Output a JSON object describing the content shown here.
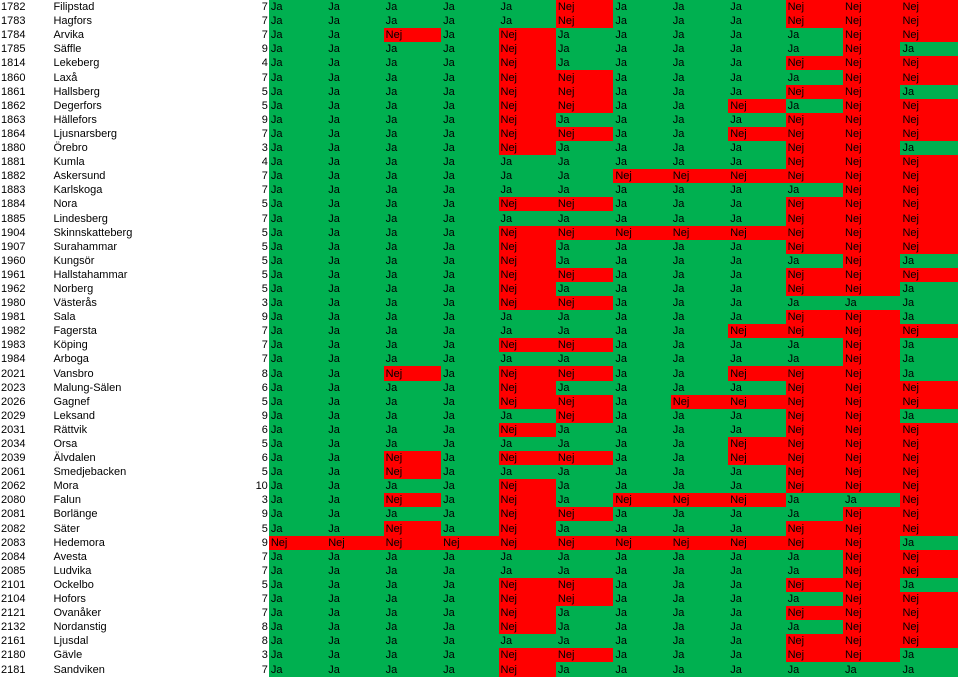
{
  "colors": {
    "ja": "#00b050",
    "nej": "#ff0000"
  },
  "rows": [
    {
      "code": "1782",
      "name": "Filipstad",
      "count": "7",
      "values": [
        "Ja",
        "Ja",
        "Ja",
        "Ja",
        "Ja",
        "Nej",
        "Ja",
        "Ja",
        "Ja",
        "Nej",
        "Nej",
        "Nej"
      ]
    },
    {
      "code": "1783",
      "name": "Hagfors",
      "count": "7",
      "values": [
        "Ja",
        "Ja",
        "Ja",
        "Ja",
        "Ja",
        "Nej",
        "Ja",
        "Ja",
        "Ja",
        "Nej",
        "Nej",
        "Nej"
      ]
    },
    {
      "code": "1784",
      "name": "Arvika",
      "count": "7",
      "values": [
        "Ja",
        "Ja",
        "Nej",
        "Ja",
        "Nej",
        "Ja",
        "Ja",
        "Ja",
        "Ja",
        "Ja",
        "Nej",
        "Nej"
      ]
    },
    {
      "code": "1785",
      "name": "Säffle",
      "count": "9",
      "values": [
        "Ja",
        "Ja",
        "Ja",
        "Ja",
        "Nej",
        "Ja",
        "Ja",
        "Ja",
        "Ja",
        "Ja",
        "Nej",
        "Ja"
      ]
    },
    {
      "code": "1814",
      "name": "Lekeberg",
      "count": "4",
      "values": [
        "Ja",
        "Ja",
        "Ja",
        "Ja",
        "Nej",
        "Ja",
        "Ja",
        "Ja",
        "Ja",
        "Nej",
        "Nej",
        "Nej"
      ]
    },
    {
      "code": "1860",
      "name": "Laxå",
      "count": "7",
      "values": [
        "Ja",
        "Ja",
        "Ja",
        "Ja",
        "Nej",
        "Nej",
        "Ja",
        "Ja",
        "Ja",
        "Ja",
        "Nej",
        "Nej"
      ]
    },
    {
      "code": "1861",
      "name": "Hallsberg",
      "count": "5",
      "values": [
        "Ja",
        "Ja",
        "Ja",
        "Ja",
        "Nej",
        "Nej",
        "Ja",
        "Ja",
        "Ja",
        "Nej",
        "Nej",
        "Ja"
      ]
    },
    {
      "code": "1862",
      "name": "Degerfors",
      "count": "5",
      "values": [
        "Ja",
        "Ja",
        "Ja",
        "Ja",
        "Nej",
        "Nej",
        "Ja",
        "Ja",
        "Nej",
        "Ja",
        "Nej",
        "Nej"
      ]
    },
    {
      "code": "1863",
      "name": "Hällefors",
      "count": "9",
      "values": [
        "Ja",
        "Ja",
        "Ja",
        "Ja",
        "Nej",
        "Ja",
        "Ja",
        "Ja",
        "Ja",
        "Nej",
        "Nej",
        "Nej"
      ]
    },
    {
      "code": "1864",
      "name": "Ljusnarsberg",
      "count": "7",
      "values": [
        "Ja",
        "Ja",
        "Ja",
        "Ja",
        "Nej",
        "Nej",
        "Ja",
        "Ja",
        "Nej",
        "Nej",
        "Nej",
        "Nej"
      ]
    },
    {
      "code": "1880",
      "name": "Örebro",
      "count": "3",
      "values": [
        "Ja",
        "Ja",
        "Ja",
        "Ja",
        "Nej",
        "Ja",
        "Ja",
        "Ja",
        "Ja",
        "Nej",
        "Nej",
        "Ja"
      ]
    },
    {
      "code": "1881",
      "name": "Kumla",
      "count": "4",
      "values": [
        "Ja",
        "Ja",
        "Ja",
        "Ja",
        "Ja",
        "Ja",
        "Ja",
        "Ja",
        "Ja",
        "Nej",
        "Nej",
        "Nej"
      ]
    },
    {
      "code": "1882",
      "name": "Askersund",
      "count": "7",
      "values": [
        "Ja",
        "Ja",
        "Ja",
        "Ja",
        "Ja",
        "Ja",
        "Nej",
        "Nej",
        "Nej",
        "Nej",
        "Nej",
        "Nej"
      ]
    },
    {
      "code": "1883",
      "name": "Karlskoga",
      "count": "7",
      "values": [
        "Ja",
        "Ja",
        "Ja",
        "Ja",
        "Ja",
        "Ja",
        "Ja",
        "Ja",
        "Ja",
        "Ja",
        "Nej",
        "Nej"
      ]
    },
    {
      "code": "1884",
      "name": "Nora",
      "count": "5",
      "values": [
        "Ja",
        "Ja",
        "Ja",
        "Ja",
        "Nej",
        "Nej",
        "Ja",
        "Ja",
        "Ja",
        "Nej",
        "Nej",
        "Nej"
      ]
    },
    {
      "code": "1885",
      "name": "Lindesberg",
      "count": "7",
      "values": [
        "Ja",
        "Ja",
        "Ja",
        "Ja",
        "Ja",
        "Ja",
        "Ja",
        "Ja",
        "Ja",
        "Nej",
        "Nej",
        "Nej"
      ]
    },
    {
      "code": "1904",
      "name": "Skinnskatteberg",
      "count": "5",
      "values": [
        "Ja",
        "Ja",
        "Ja",
        "Ja",
        "Nej",
        "Nej",
        "Nej",
        "Nej",
        "Nej",
        "Nej",
        "Nej",
        "Nej"
      ]
    },
    {
      "code": "1907",
      "name": "Surahammar",
      "count": "5",
      "values": [
        "Ja",
        "Ja",
        "Ja",
        "Ja",
        "Nej",
        "Ja",
        "Ja",
        "Ja",
        "Ja",
        "Nej",
        "Nej",
        "Nej"
      ]
    },
    {
      "code": "1960",
      "name": "Kungsör",
      "count": "5",
      "values": [
        "Ja",
        "Ja",
        "Ja",
        "Ja",
        "Nej",
        "Ja",
        "Ja",
        "Ja",
        "Ja",
        "Ja",
        "Nej",
        "Ja"
      ]
    },
    {
      "code": "1961",
      "name": "Hallstahammar",
      "count": "5",
      "values": [
        "Ja",
        "Ja",
        "Ja",
        "Ja",
        "Nej",
        "Nej",
        "Ja",
        "Ja",
        "Ja",
        "Nej",
        "Nej",
        "Nej"
      ]
    },
    {
      "code": "1962",
      "name": "Norberg",
      "count": "5",
      "values": [
        "Ja",
        "Ja",
        "Ja",
        "Ja",
        "Nej",
        "Ja",
        "Ja",
        "Ja",
        "Ja",
        "Nej",
        "Nej",
        "Ja"
      ]
    },
    {
      "code": "1980",
      "name": "Västerås",
      "count": "3",
      "values": [
        "Ja",
        "Ja",
        "Ja",
        "Ja",
        "Nej",
        "Nej",
        "Ja",
        "Ja",
        "Ja",
        "Ja",
        "Ja",
        "Ja"
      ]
    },
    {
      "code": "1981",
      "name": "Sala",
      "count": "9",
      "values": [
        "Ja",
        "Ja",
        "Ja",
        "Ja",
        "Ja",
        "Ja",
        "Ja",
        "Ja",
        "Ja",
        "Nej",
        "Nej",
        "Ja"
      ]
    },
    {
      "code": "1982",
      "name": "Fagersta",
      "count": "7",
      "values": [
        "Ja",
        "Ja",
        "Ja",
        "Ja",
        "Ja",
        "Ja",
        "Ja",
        "Ja",
        "Nej",
        "Nej",
        "Nej",
        "Nej"
      ]
    },
    {
      "code": "1983",
      "name": "Köping",
      "count": "7",
      "values": [
        "Ja",
        "Ja",
        "Ja",
        "Ja",
        "Nej",
        "Nej",
        "Ja",
        "Ja",
        "Ja",
        "Ja",
        "Nej",
        "Ja"
      ]
    },
    {
      "code": "1984",
      "name": "Arboga",
      "count": "7",
      "values": [
        "Ja",
        "Ja",
        "Ja",
        "Ja",
        "Ja",
        "Ja",
        "Ja",
        "Ja",
        "Ja",
        "Ja",
        "Nej",
        "Ja"
      ]
    },
    {
      "code": "2021",
      "name": "Vansbro",
      "count": "8",
      "values": [
        "Ja",
        "Ja",
        "Nej",
        "Ja",
        "Nej",
        "Nej",
        "Ja",
        "Ja",
        "Nej",
        "Nej",
        "Nej",
        "Ja"
      ]
    },
    {
      "code": "2023",
      "name": "Malung-Sälen",
      "count": "6",
      "values": [
        "Ja",
        "Ja",
        "Ja",
        "Ja",
        "Nej",
        "Ja",
        "Ja",
        "Ja",
        "Ja",
        "Nej",
        "Nej",
        "Nej"
      ]
    },
    {
      "code": "2026",
      "name": "Gagnef",
      "count": "5",
      "values": [
        "Ja",
        "Ja",
        "Ja",
        "Ja",
        "Nej",
        "Nej",
        "Ja",
        "Nej",
        "Nej",
        "Nej",
        "Nej",
        "Nej"
      ]
    },
    {
      "code": "2029",
      "name": "Leksand",
      "count": "9",
      "values": [
        "Ja",
        "Ja",
        "Ja",
        "Ja",
        "Ja",
        "Nej",
        "Ja",
        "Ja",
        "Ja",
        "Nej",
        "Nej",
        "Ja"
      ]
    },
    {
      "code": "2031",
      "name": "Rättvik",
      "count": "6",
      "values": [
        "Ja",
        "Ja",
        "Ja",
        "Ja",
        "Nej",
        "Ja",
        "Ja",
        "Ja",
        "Ja",
        "Nej",
        "Nej",
        "Nej"
      ]
    },
    {
      "code": "2034",
      "name": "Orsa",
      "count": "5",
      "values": [
        "Ja",
        "Ja",
        "Ja",
        "Ja",
        "Ja",
        "Ja",
        "Ja",
        "Ja",
        "Nej",
        "Nej",
        "Nej",
        "Nej"
      ]
    },
    {
      "code": "2039",
      "name": "Älvdalen",
      "count": "6",
      "values": [
        "Ja",
        "Ja",
        "Nej",
        "Ja",
        "Nej",
        "Nej",
        "Ja",
        "Ja",
        "Nej",
        "Nej",
        "Nej",
        "Nej"
      ]
    },
    {
      "code": "2061",
      "name": "Smedjebacken",
      "count": "5",
      "values": [
        "Ja",
        "Ja",
        "Nej",
        "Ja",
        "Ja",
        "Ja",
        "Ja",
        "Ja",
        "Ja",
        "Nej",
        "Nej",
        "Nej"
      ]
    },
    {
      "code": "2062",
      "name": "Mora",
      "count": "10",
      "values": [
        "Ja",
        "Ja",
        "Ja",
        "Ja",
        "Nej",
        "Ja",
        "Ja",
        "Ja",
        "Ja",
        "Nej",
        "Nej",
        "Nej"
      ]
    },
    {
      "code": "2080",
      "name": "Falun",
      "count": "3",
      "values": [
        "Ja",
        "Ja",
        "Nej",
        "Ja",
        "Nej",
        "Ja",
        "Nej",
        "Nej",
        "Nej",
        "Ja",
        "Ja",
        "Nej"
      ]
    },
    {
      "code": "2081",
      "name": "Borlänge",
      "count": "9",
      "values": [
        "Ja",
        "Ja",
        "Ja",
        "Ja",
        "Nej",
        "Nej",
        "Ja",
        "Ja",
        "Ja",
        "Ja",
        "Nej",
        "Nej"
      ]
    },
    {
      "code": "2082",
      "name": "Säter",
      "count": "5",
      "values": [
        "Ja",
        "Ja",
        "Nej",
        "Ja",
        "Nej",
        "Ja",
        "Ja",
        "Ja",
        "Ja",
        "Nej",
        "Nej",
        "Nej"
      ]
    },
    {
      "code": "2083",
      "name": "Hedemora",
      "count": "9",
      "values": [
        "Nej",
        "Nej",
        "Nej",
        "Nej",
        "Nej",
        "Nej",
        "Nej",
        "Nej",
        "Nej",
        "Nej",
        "Nej",
        "Ja"
      ]
    },
    {
      "code": "2084",
      "name": "Avesta",
      "count": "7",
      "values": [
        "Ja",
        "Ja",
        "Ja",
        "Ja",
        "Ja",
        "Ja",
        "Ja",
        "Ja",
        "Ja",
        "Ja",
        "Nej",
        "Nej"
      ]
    },
    {
      "code": "2085",
      "name": "Ludvika",
      "count": "7",
      "values": [
        "Ja",
        "Ja",
        "Ja",
        "Ja",
        "Ja",
        "Ja",
        "Ja",
        "Ja",
        "Ja",
        "Ja",
        "Nej",
        "Nej"
      ]
    },
    {
      "code": "2101",
      "name": "Ockelbo",
      "count": "5",
      "values": [
        "Ja",
        "Ja",
        "Ja",
        "Ja",
        "Nej",
        "Nej",
        "Ja",
        "Ja",
        "Ja",
        "Nej",
        "Nej",
        "Ja"
      ]
    },
    {
      "code": "2104",
      "name": "Hofors",
      "count": "7",
      "values": [
        "Ja",
        "Ja",
        "Ja",
        "Ja",
        "Nej",
        "Nej",
        "Ja",
        "Ja",
        "Ja",
        "Ja",
        "Nej",
        "Nej"
      ]
    },
    {
      "code": "2121",
      "name": "Ovanåker",
      "count": "7",
      "values": [
        "Ja",
        "Ja",
        "Ja",
        "Ja",
        "Nej",
        "Ja",
        "Ja",
        "Ja",
        "Ja",
        "Nej",
        "Nej",
        "Nej"
      ]
    },
    {
      "code": "2132",
      "name": "Nordanstig",
      "count": "8",
      "values": [
        "Ja",
        "Ja",
        "Ja",
        "Ja",
        "Nej",
        "Ja",
        "Ja",
        "Ja",
        "Ja",
        "Ja",
        "Nej",
        "Nej"
      ]
    },
    {
      "code": "2161",
      "name": "Ljusdal",
      "count": "8",
      "values": [
        "Ja",
        "Ja",
        "Ja",
        "Ja",
        "Ja",
        "Ja",
        "Ja",
        "Ja",
        "Ja",
        "Nej",
        "Nej",
        "Nej"
      ]
    },
    {
      "code": "2180",
      "name": "Gävle",
      "count": "3",
      "values": [
        "Ja",
        "Ja",
        "Ja",
        "Ja",
        "Nej",
        "Nej",
        "Ja",
        "Ja",
        "Ja",
        "Nej",
        "Nej",
        "Ja"
      ]
    },
    {
      "code": "2181",
      "name": "Sandviken",
      "count": "7",
      "values": [
        "Ja",
        "Ja",
        "Ja",
        "Ja",
        "Nej",
        "Ja",
        "Ja",
        "Ja",
        "Ja",
        "Ja",
        "Ja",
        "Ja"
      ]
    }
  ]
}
